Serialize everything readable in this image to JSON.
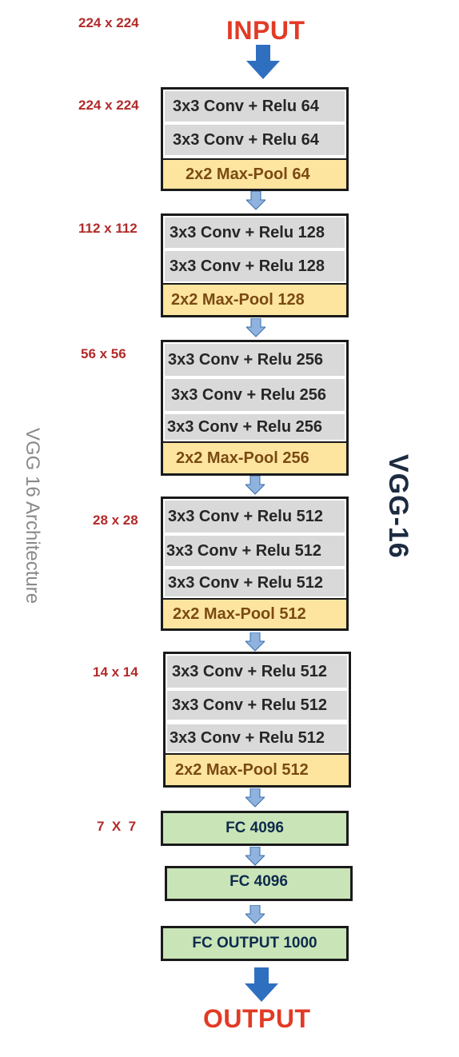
{
  "input_label": "INPUT",
  "output_label": "OUTPUT",
  "side_title": "VGG 16 Architecture",
  "brand_title": "VGG-16",
  "size_labels": [
    "224 x 224",
    "224 x 224",
    "112 x 112",
    "56 x 56",
    "28 x 28",
    "14 x 14",
    "7  X  7"
  ],
  "blocks": [
    {
      "layers": [
        "3x3  Conv + Relu  64",
        "3x3  Conv + Relu  64",
        "2x2  Max-Pool  64"
      ]
    },
    {
      "layers": [
        "3x3  Conv + Relu  128",
        "3x3  Conv + Relu  128",
        "2x2  Max-Pool  128"
      ]
    },
    {
      "layers": [
        "3x3  Conv + Relu  256",
        "3x3  Conv + Relu  256",
        "3x3  Conv + Relu  256",
        "2x2  Max-Pool  256"
      ]
    },
    {
      "layers": [
        "3x3  Conv + Relu  512",
        "3x3  Conv + Relu  512",
        "3x3  Conv + Relu  512",
        "2x2  Max-Pool  512"
      ]
    },
    {
      "layers": [
        "3x3  Conv + Relu  512",
        "3x3  Conv + Relu  512",
        "3x3  Conv + Relu  512",
        "2x2  Max-Pool  512"
      ]
    }
  ],
  "fc_layers": [
    "FC  4096",
    "FC  4096",
    "FC  OUTPUT  1000"
  ],
  "colors": {
    "conv_fill": "#d9d9d9",
    "pool_fill": "#fde5a0",
    "fc_fill": "#c9e5b8",
    "size_label": "#b22a2a",
    "io_label": "#e23a26",
    "arrow_big": "#2f6fc0",
    "arrow_small": "#8fb3de"
  }
}
